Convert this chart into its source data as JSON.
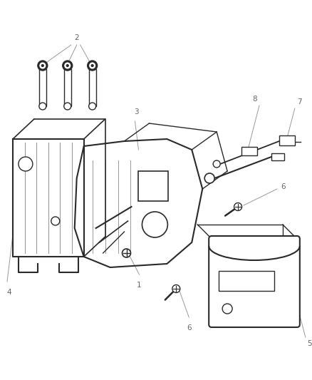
{
  "bg_color": "#ffffff",
  "fig_width": 4.39,
  "fig_height": 5.33,
  "dpi": 100,
  "dark": "#2a2a2a",
  "gray": "#999999",
  "mid": "#666666",
  "label_fs": 7.5
}
